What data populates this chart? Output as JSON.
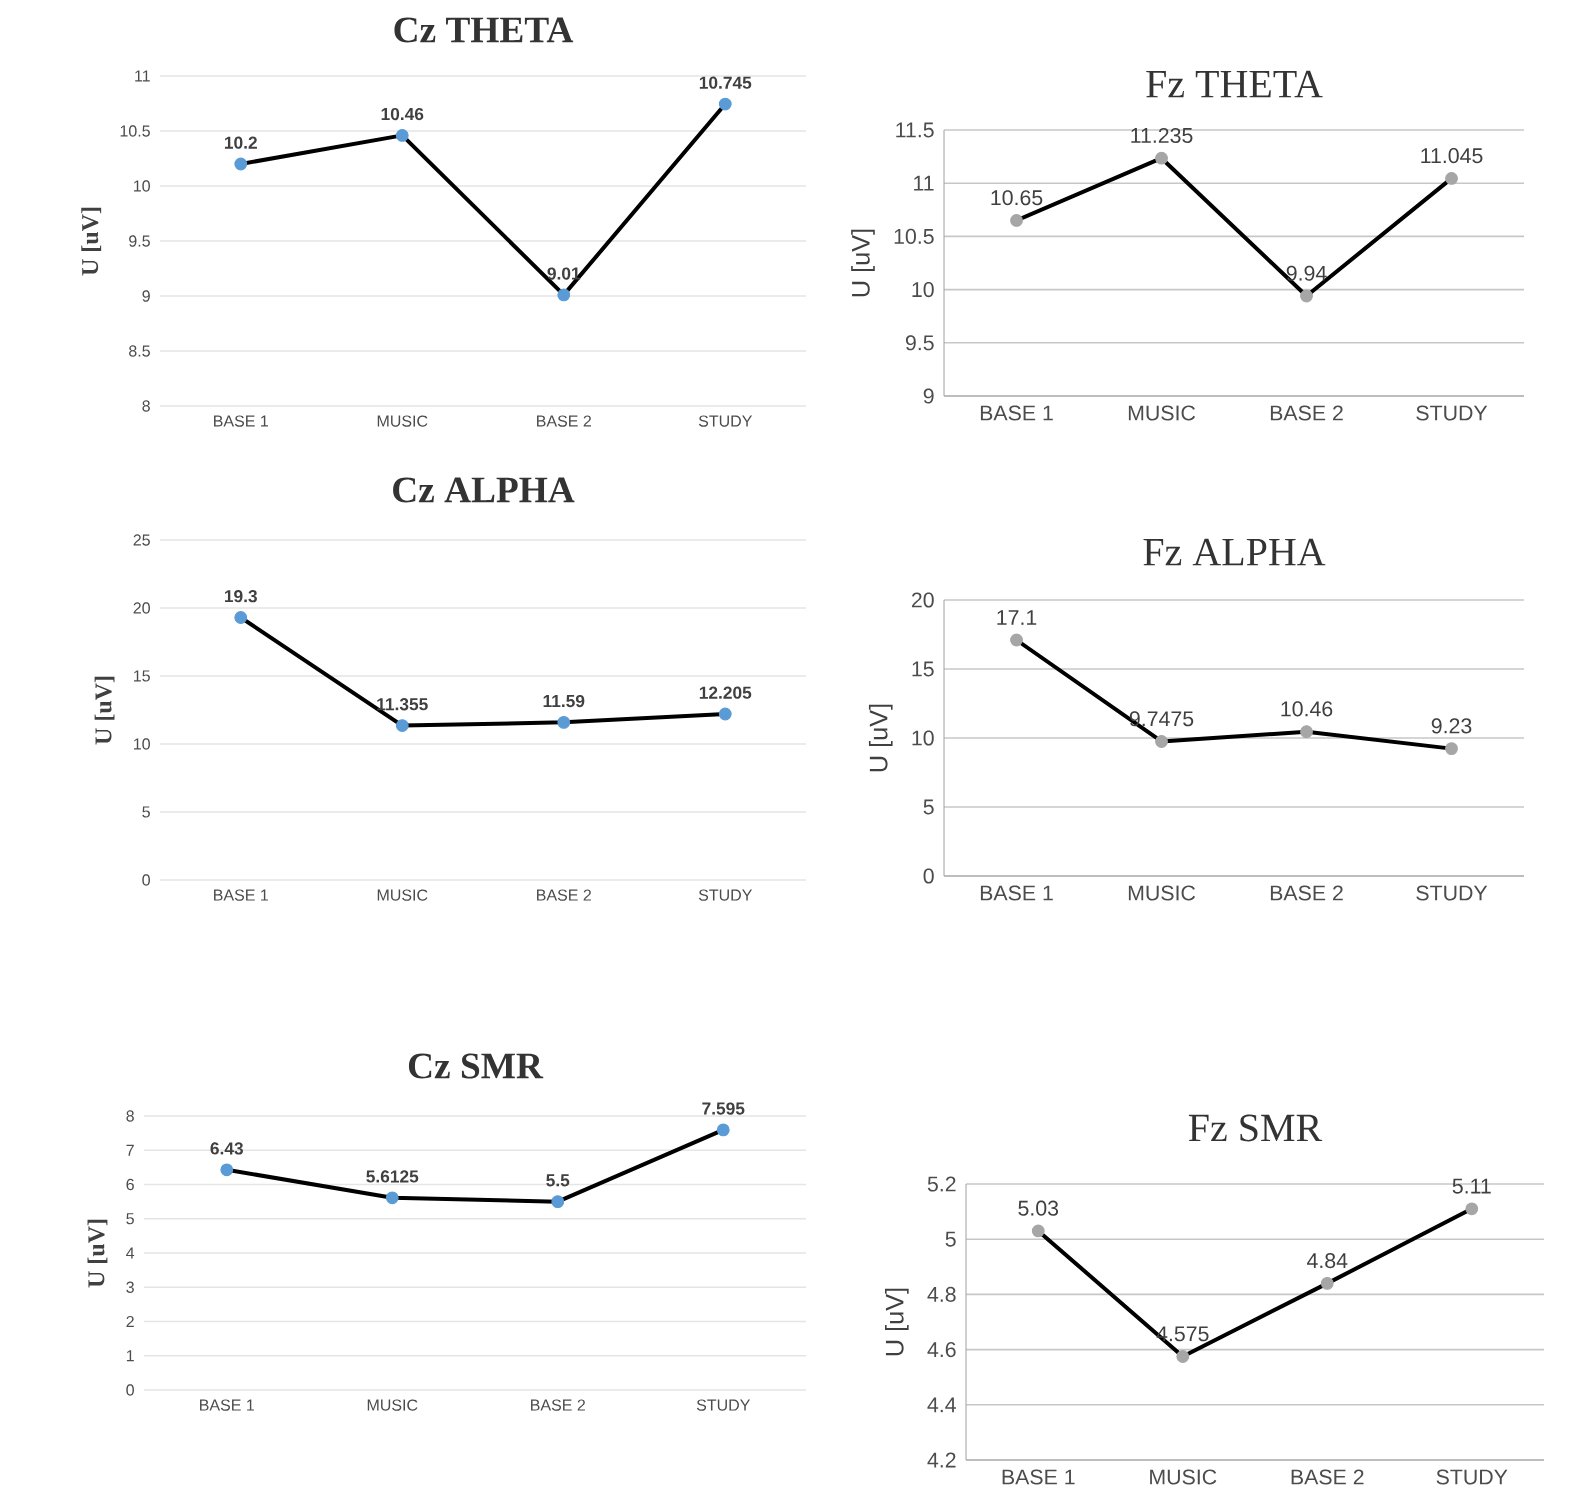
{
  "chart_data": [
    {
      "type": "line",
      "title": "Cz THETA",
      "ylabel": "U [uV]",
      "categories": [
        "BASE 1",
        "MUSIC",
        "BASE 2",
        "STUDY"
      ],
      "series": [
        {
          "color": "#000000",
          "colors": [
            "#5b9bd5",
            "#5b9bd5",
            "#5b9bd5",
            "#5b9bd5"
          ],
          "values": [
            10.2,
            10.46,
            9.01,
            10.745
          ]
        }
      ],
      "ylim": [
        8,
        11
      ],
      "yticks": [
        8,
        8.5,
        9,
        9.5,
        10,
        10.5,
        11
      ],
      "grid": "y",
      "marker": "circle",
      "data_labels": true
    },
    {
      "type": "line",
      "title": "Fz THETA",
      "ylabel": "U [uV]",
      "categories": [
        "BASE 1",
        "MUSIC",
        "BASE 2",
        "STUDY"
      ],
      "series": [
        {
          "color": "#000000",
          "colors": [
            "#a6a6a6",
            "#a6a6a6",
            "#a6a6a6",
            "#a6a6a6"
          ],
          "values": [
            10.65,
            11.235,
            9.94,
            11.045
          ]
        }
      ],
      "ylim": [
        9,
        11.5
      ],
      "yticks": [
        9,
        9.5,
        10,
        10.5,
        11,
        11.5
      ],
      "grid": "y",
      "marker": "circle",
      "data_labels": true
    },
    {
      "type": "line",
      "title": "Cz ALPHA",
      "ylabel": "U [uV]",
      "categories": [
        "BASE 1",
        "MUSIC",
        "BASE 2",
        "STUDY"
      ],
      "series": [
        {
          "color": "#000000",
          "colors": [
            "#5b9bd5",
            "#5b9bd5",
            "#5b9bd5",
            "#5b9bd5"
          ],
          "values": [
            19.3,
            11.355,
            11.59,
            12.205
          ]
        }
      ],
      "ylim": [
        0,
        25
      ],
      "yticks": [
        0,
        5,
        10,
        15,
        20,
        25
      ],
      "grid": "y",
      "marker": "circle",
      "data_labels": true
    },
    {
      "type": "line",
      "title": "Fz ALPHA",
      "ylabel": "U [uV]",
      "categories": [
        "BASE 1",
        "MUSIC",
        "BASE 2",
        "STUDY"
      ],
      "series": [
        {
          "color": "#000000",
          "colors": [
            "#a6a6a6",
            "#a6a6a6",
            "#a6a6a6",
            "#a6a6a6"
          ],
          "values": [
            17.1,
            9.7475,
            10.46,
            9.23
          ]
        }
      ],
      "ylim": [
        0,
        20
      ],
      "yticks": [
        0,
        5,
        10,
        15,
        20
      ],
      "grid": "y",
      "marker": "circle",
      "data_labels": true
    },
    {
      "type": "line",
      "title": "Cz SMR",
      "ylabel": "U [uV]",
      "categories": [
        "BASE 1",
        "MUSIC",
        "BASE 2",
        "STUDY"
      ],
      "series": [
        {
          "color": "#000000",
          "colors": [
            "#5b9bd5",
            "#5b9bd5",
            "#5b9bd5",
            "#5b9bd5"
          ],
          "values": [
            6.43,
            5.6125,
            5.5,
            7.595
          ]
        }
      ],
      "ylim": [
        0,
        8
      ],
      "yticks": [
        0,
        1,
        2,
        3,
        4,
        5,
        6,
        7,
        8
      ],
      "grid": "y",
      "marker": "circle",
      "data_labels": true
    },
    {
      "type": "line",
      "title": "Fz SMR",
      "ylabel": "U [uV]",
      "categories": [
        "BASE 1",
        "MUSIC",
        "BASE 2",
        "STUDY"
      ],
      "series": [
        {
          "color": "#000000",
          "colors": [
            "#a6a6a6",
            "#a6a6a6",
            "#a6a6a6",
            "#a6a6a6"
          ],
          "values": [
            5.03,
            4.575,
            4.84,
            5.11
          ]
        }
      ],
      "ylim": [
        4.2,
        5.2
      ],
      "yticks": [
        4.2,
        4.4,
        4.6,
        4.8,
        5,
        5.2
      ],
      "grid": "y",
      "marker": "circle",
      "data_labels": true
    }
  ]
}
